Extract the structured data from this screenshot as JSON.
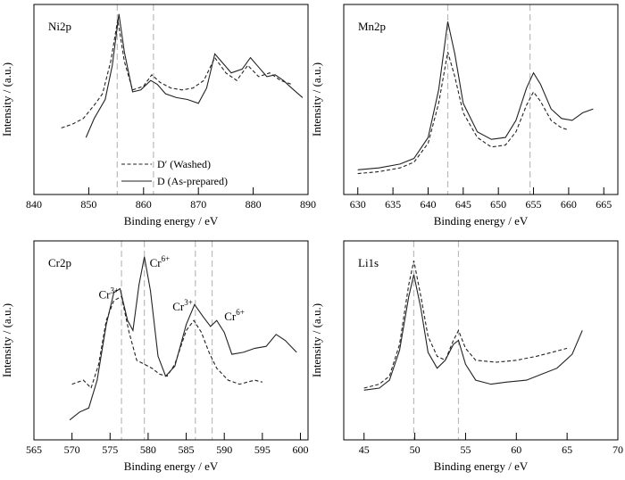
{
  "chart_data": [
    {
      "type": "line",
      "title": "Ni2p",
      "xlabel": "Binding energy / eV",
      "ylabel": "Intensity / (a.u.)",
      "xlim": [
        840,
        890
      ],
      "xticks": [
        "840",
        "850",
        "860",
        "870",
        "880",
        "890"
      ],
      "guides": [
        855.2,
        861.8
      ],
      "legend": {
        "position": "bottom-left",
        "entries": [
          "D′ (Washed)",
          "D (As-prepared)"
        ]
      },
      "annotations": [],
      "series": [
        {
          "name": "D′ (Washed)",
          "style": "dashed",
          "points": [
            [
              845,
              0.35
            ],
            [
              847,
              0.37
            ],
            [
              849,
              0.4
            ],
            [
              851,
              0.47
            ],
            [
              852.5,
              0.53
            ],
            [
              854,
              0.7
            ],
            [
              855.3,
              0.92
            ],
            [
              856.5,
              0.7
            ],
            [
              858,
              0.55
            ],
            [
              860,
              0.57
            ],
            [
              861.5,
              0.63
            ],
            [
              863,
              0.59
            ],
            [
              865,
              0.56
            ],
            [
              867,
              0.55
            ],
            [
              869,
              0.56
            ],
            [
              871,
              0.6
            ],
            [
              873,
              0.72
            ],
            [
              875,
              0.64
            ],
            [
              877,
              0.6
            ],
            [
              879,
              0.68
            ],
            [
              881,
              0.62
            ],
            [
              883,
              0.64
            ],
            [
              885,
              0.6
            ],
            [
              887,
              0.58
            ]
          ]
        },
        {
          "name": "D (As-prepared)",
          "style": "solid",
          "points": [
            [
              849.5,
              0.3
            ],
            [
              851,
              0.4
            ],
            [
              853,
              0.5
            ],
            [
              854.3,
              0.68
            ],
            [
              855.5,
              0.95
            ],
            [
              856.5,
              0.75
            ],
            [
              858,
              0.54
            ],
            [
              859.5,
              0.55
            ],
            [
              861.3,
              0.6
            ],
            [
              862.5,
              0.58
            ],
            [
              864,
              0.53
            ],
            [
              866,
              0.51
            ],
            [
              868,
              0.5
            ],
            [
              870,
              0.48
            ],
            [
              871.5,
              0.56
            ],
            [
              873,
              0.74
            ],
            [
              874.5,
              0.69
            ],
            [
              876,
              0.64
            ],
            [
              878,
              0.66
            ],
            [
              879.5,
              0.72
            ],
            [
              881,
              0.67
            ],
            [
              882.5,
              0.62
            ],
            [
              884,
              0.63
            ],
            [
              885.5,
              0.6
            ],
            [
              887,
              0.56
            ],
            [
              889,
              0.51
            ]
          ]
        }
      ]
    },
    {
      "type": "line",
      "title": "Mn2p",
      "xlabel": "Binding energy / eV",
      "ylabel": "Intensity / (a.u.)",
      "xlim": [
        628,
        667
      ],
      "xticks": [
        "630",
        "635",
        "640",
        "645",
        "650",
        "655",
        "660",
        "665"
      ],
      "guides": [
        642.8,
        654.5
      ],
      "annotations": [],
      "series": [
        {
          "name": "D′ (Washed)",
          "style": "dashed",
          "points": [
            [
              630,
              0.11
            ],
            [
              633,
              0.12
            ],
            [
              636,
              0.14
            ],
            [
              638,
              0.17
            ],
            [
              640,
              0.27
            ],
            [
              641.5,
              0.48
            ],
            [
              642.8,
              0.75
            ],
            [
              643.8,
              0.62
            ],
            [
              645,
              0.43
            ],
            [
              647,
              0.3
            ],
            [
              649,
              0.25
            ],
            [
              651,
              0.26
            ],
            [
              652.5,
              0.33
            ],
            [
              654,
              0.47
            ],
            [
              655,
              0.54
            ],
            [
              656,
              0.49
            ],
            [
              657.5,
              0.39
            ],
            [
              659,
              0.35
            ],
            [
              660,
              0.34
            ]
          ]
        },
        {
          "name": "D (As-prepared)",
          "style": "solid",
          "points": [
            [
              630,
              0.13
            ],
            [
              633,
              0.14
            ],
            [
              636,
              0.16
            ],
            [
              638,
              0.19
            ],
            [
              640,
              0.3
            ],
            [
              641.5,
              0.55
            ],
            [
              642.8,
              0.91
            ],
            [
              643.8,
              0.74
            ],
            [
              645,
              0.48
            ],
            [
              647,
              0.33
            ],
            [
              649,
              0.29
            ],
            [
              651,
              0.3
            ],
            [
              652.5,
              0.39
            ],
            [
              654,
              0.56
            ],
            [
              655,
              0.64
            ],
            [
              656,
              0.58
            ],
            [
              657.5,
              0.45
            ],
            [
              659,
              0.4
            ],
            [
              660.5,
              0.39
            ],
            [
              662,
              0.43
            ],
            [
              663.5,
              0.45
            ]
          ]
        }
      ]
    },
    {
      "type": "line",
      "title": "Cr2p",
      "xlabel": "Binding energy / eV",
      "ylabel": "Intensity / (a.u.)",
      "xlim": [
        565,
        601
      ],
      "xticks": [
        "565",
        "570",
        "575",
        "580",
        "585",
        "590",
        "595",
        "600"
      ],
      "guides": [
        576.5,
        579.5,
        586.2,
        588.4
      ],
      "annotations": [
        {
          "base": "Cr",
          "sup": "3+",
          "x": 573.5,
          "y": 0.71
        },
        {
          "base": "Cr",
          "sup": "6+",
          "x": 580.2,
          "y": 0.87
        },
        {
          "base": "Cr",
          "sup": "3+",
          "x": 583.2,
          "y": 0.65
        },
        {
          "base": "Cr",
          "sup": "6+",
          "x": 590.0,
          "y": 0.6
        }
      ],
      "series": [
        {
          "name": "D′ (Washed)",
          "style": "dashed",
          "points": [
            [
              570,
              0.28
            ],
            [
              571.5,
              0.3
            ],
            [
              572.5,
              0.26
            ],
            [
              573.5,
              0.38
            ],
            [
              574.5,
              0.6
            ],
            [
              575.5,
              0.7
            ],
            [
              576.5,
              0.72
            ],
            [
              577.5,
              0.54
            ],
            [
              578.5,
              0.4
            ],
            [
              579.5,
              0.38
            ],
            [
              580.5,
              0.36
            ],
            [
              581.5,
              0.33
            ],
            [
              582.5,
              0.32
            ],
            [
              583.5,
              0.38
            ],
            [
              585,
              0.55
            ],
            [
              586,
              0.6
            ],
            [
              587,
              0.54
            ],
            [
              588,
              0.44
            ],
            [
              589,
              0.36
            ],
            [
              590.5,
              0.3
            ],
            [
              592,
              0.28
            ],
            [
              594,
              0.3
            ],
            [
              595,
              0.29
            ]
          ]
        },
        {
          "name": "D (As-prepared)",
          "style": "solid",
          "points": [
            [
              569.7,
              0.1
            ],
            [
              571,
              0.14
            ],
            [
              572.2,
              0.16
            ],
            [
              573.3,
              0.3
            ],
            [
              574.5,
              0.58
            ],
            [
              575.5,
              0.74
            ],
            [
              576.3,
              0.76
            ],
            [
              577.3,
              0.6
            ],
            [
              578,
              0.55
            ],
            [
              578.8,
              0.78
            ],
            [
              579.5,
              0.92
            ],
            [
              580.3,
              0.75
            ],
            [
              581.3,
              0.42
            ],
            [
              582.3,
              0.32
            ],
            [
              583.5,
              0.37
            ],
            [
              585,
              0.58
            ],
            [
              586.1,
              0.68
            ],
            [
              587.2,
              0.62
            ],
            [
              588.2,
              0.57
            ],
            [
              589,
              0.6
            ],
            [
              590,
              0.54
            ],
            [
              591,
              0.43
            ],
            [
              592.5,
              0.44
            ],
            [
              594,
              0.46
            ],
            [
              595.5,
              0.47
            ],
            [
              596.8,
              0.53
            ],
            [
              598,
              0.5
            ],
            [
              599.5,
              0.44
            ]
          ]
        }
      ]
    },
    {
      "type": "line",
      "title": "Li1s",
      "xlabel": "Binding energy / eV",
      "ylabel": "Intensity / (a.u.)",
      "xlim": [
        43,
        70
      ],
      "xticks": [
        "45",
        "50",
        "55",
        "60",
        "65",
        "70"
      ],
      "guides": [
        49.9,
        54.3
      ],
      "annotations": [],
      "series": [
        {
          "name": "D′ (Washed)",
          "style": "dashed",
          "points": [
            [
              45,
              0.26
            ],
            [
              46.5,
              0.28
            ],
            [
              47.5,
              0.32
            ],
            [
              48.5,
              0.48
            ],
            [
              49.4,
              0.78
            ],
            [
              49.9,
              0.9
            ],
            [
              50.6,
              0.72
            ],
            [
              51.3,
              0.52
            ],
            [
              52.2,
              0.42
            ],
            [
              53,
              0.4
            ],
            [
              53.8,
              0.5
            ],
            [
              54.3,
              0.55
            ],
            [
              55,
              0.46
            ],
            [
              56,
              0.4
            ],
            [
              58,
              0.39
            ],
            [
              60,
              0.4
            ],
            [
              62,
              0.42
            ],
            [
              63.5,
              0.44
            ],
            [
              65,
              0.46
            ]
          ]
        },
        {
          "name": "D (As-prepared)",
          "style": "solid",
          "points": [
            [
              45,
              0.25
            ],
            [
              46.5,
              0.26
            ],
            [
              47.5,
              0.3
            ],
            [
              48.5,
              0.45
            ],
            [
              49.4,
              0.72
            ],
            [
              49.9,
              0.83
            ],
            [
              50.6,
              0.66
            ],
            [
              51.3,
              0.44
            ],
            [
              52.2,
              0.36
            ],
            [
              53,
              0.4
            ],
            [
              53.8,
              0.48
            ],
            [
              54.3,
              0.5
            ],
            [
              55,
              0.38
            ],
            [
              56,
              0.3
            ],
            [
              57.5,
              0.28
            ],
            [
              59,
              0.29
            ],
            [
              61,
              0.3
            ],
            [
              62.5,
              0.33
            ],
            [
              64,
              0.36
            ],
            [
              65.5,
              0.43
            ],
            [
              66.5,
              0.55
            ]
          ]
        }
      ]
    }
  ]
}
